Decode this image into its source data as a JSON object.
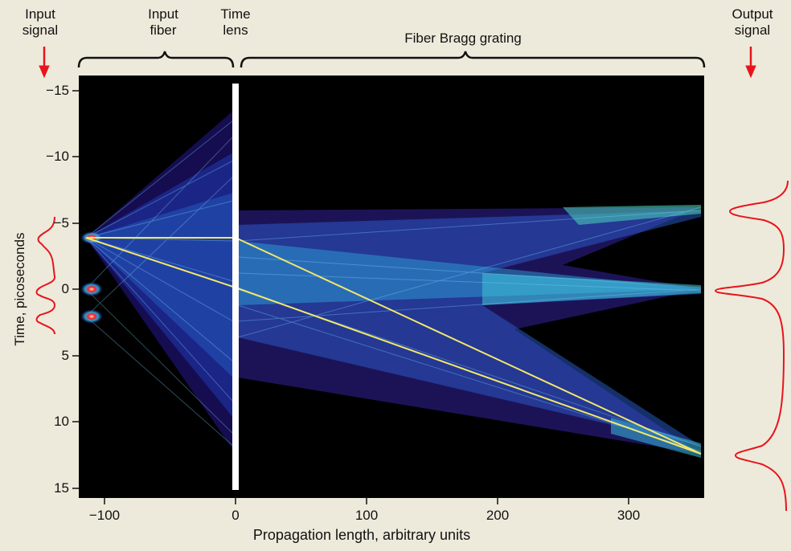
{
  "labels": {
    "input_signal": "Input\nsignal",
    "input_fiber": "Input\nfiber",
    "time_lens": "Time\nlens",
    "fiber_bragg_grating": "Fiber Bragg grating",
    "output_signal": "Output\nsignal"
  },
  "axes": {
    "ylabel": "Time, picoseconds",
    "xlabel": "Propagation length, arbitrary units",
    "yticks": [
      "−15",
      "−10",
      "−5",
      "0",
      "5",
      "10",
      "15"
    ],
    "xticks": [
      "−100",
      "0",
      "100",
      "200",
      "300"
    ]
  },
  "colors": {
    "background": "#eeeadb",
    "plot_bg": "#000000",
    "arrow": "#e8141c",
    "pulse_curve": "#e8141c",
    "trajectory": "#f2e86a",
    "lens": "#ffffff"
  },
  "chart_data": {
    "type": "heatmap",
    "xlabel": "Propagation length, arbitrary units",
    "ylabel": "Time, picoseconds",
    "xlim": [
      -120,
      360
    ],
    "ylim": [
      -15,
      15
    ],
    "y_inverted": true,
    "time_lens_position": 0,
    "input_pulse_times": [
      -4.2,
      0.5,
      2.5
    ],
    "output_pulse_times": [
      -6.0,
      0.0,
      12.0
    ],
    "trajectories": [
      {
        "points": [
          [
            -112,
            -4.2
          ],
          [
            0,
            -4.2
          ],
          [
            360,
            12.0
          ]
        ]
      },
      {
        "points": [
          [
            -112,
            -4.2
          ],
          [
            0,
            0.0
          ],
          [
            360,
            12.0
          ]
        ]
      }
    ]
  }
}
